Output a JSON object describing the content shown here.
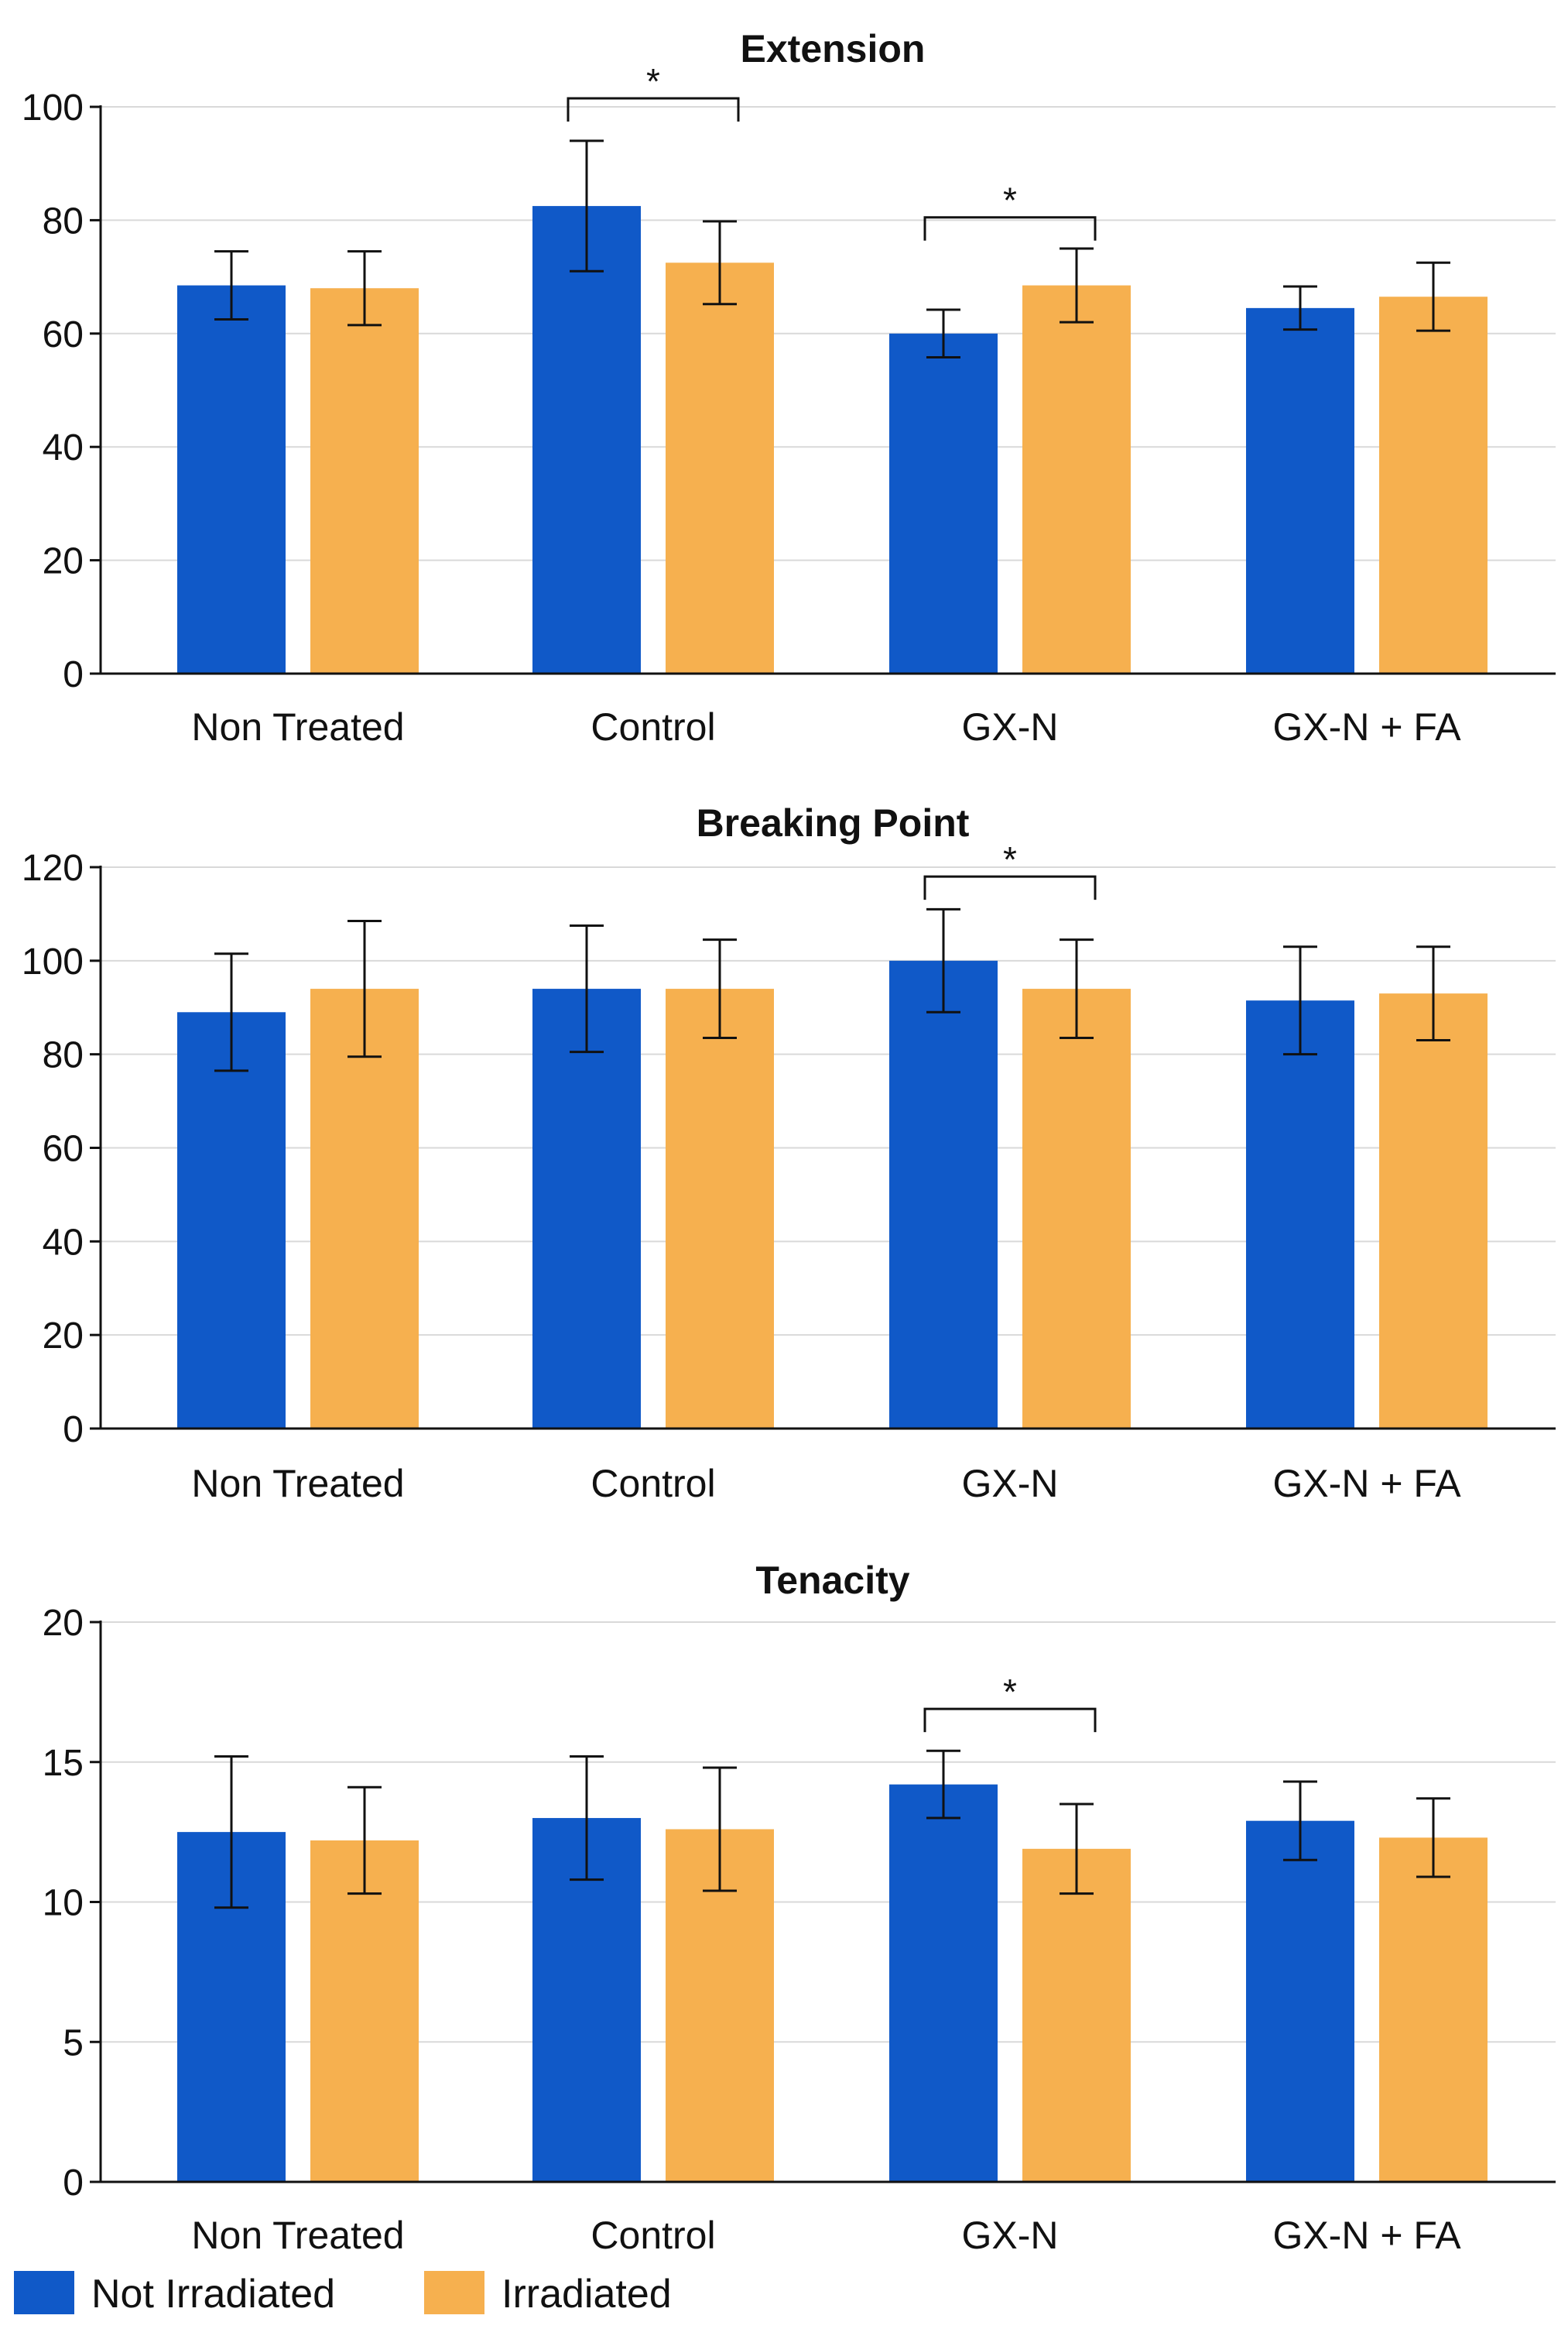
{
  "colors": {
    "not_irradiated": "#1059C8",
    "irradiated": "#F6B04F"
  },
  "legend": {
    "items": [
      {
        "label": "Not Irradiated",
        "color": "#1059C8"
      },
      {
        "label": "Irradiated",
        "color": "#F6B04F"
      }
    ]
  },
  "chart_data": [
    {
      "type": "bar",
      "title": "Extension",
      "categories": [
        "Non Treated",
        "Control",
        "GX-N",
        "GX-N + FA"
      ],
      "ylim": [
        0,
        100
      ],
      "yticks": [
        0,
        20,
        40,
        60,
        80,
        100
      ],
      "series": [
        {
          "name": "Not Irradiated",
          "values": [
            68.5,
            82.5,
            60,
            64.5
          ],
          "errors": [
            6,
            11.5,
            4.2,
            3.8
          ]
        },
        {
          "name": "Irradiated",
          "values": [
            68,
            72.5,
            68.5,
            66.5
          ],
          "errors": [
            6.5,
            7.3,
            6.5,
            6
          ]
        }
      ],
      "significance": [
        {
          "category": "Control",
          "label": "*",
          "y": 101.5
        },
        {
          "category": "GX-N",
          "label": "*",
          "y": 80.5
        }
      ],
      "grid": true
    },
    {
      "type": "bar",
      "title": "Breaking Point",
      "categories": [
        "Non Treated",
        "Control",
        "GX-N",
        "GX-N + FA"
      ],
      "ylim": [
        0,
        120
      ],
      "yticks": [
        0,
        20,
        40,
        60,
        80,
        100,
        120
      ],
      "series": [
        {
          "name": "Not Irradiated",
          "values": [
            89,
            94,
            100,
            91.5
          ],
          "errors": [
            12.5,
            13.5,
            11,
            11.5
          ]
        },
        {
          "name": "Irradiated",
          "values": [
            94,
            94,
            94,
            93
          ],
          "errors": [
            14.5,
            10.5,
            10.5,
            10
          ]
        }
      ],
      "significance": [
        {
          "category": "GX-N",
          "label": "*",
          "y": 118
        }
      ],
      "grid": true
    },
    {
      "type": "bar",
      "title": "Tenacity",
      "categories": [
        "Non Treated",
        "Control",
        "GX-N",
        "GX-N + FA"
      ],
      "ylim": [
        0,
        20
      ],
      "yticks": [
        0,
        5,
        10,
        15,
        20
      ],
      "series": [
        {
          "name": "Not Irradiated",
          "values": [
            12.5,
            13,
            14.2,
            12.9
          ],
          "errors": [
            2.7,
            2.2,
            1.2,
            1.4
          ]
        },
        {
          "name": "Irradiated",
          "values": [
            12.2,
            12.6,
            11.9,
            12.3
          ],
          "errors": [
            1.9,
            2.2,
            1.6,
            1.4
          ]
        }
      ],
      "significance": [
        {
          "category": "GX-N",
          "label": "*",
          "y": 16.9
        }
      ],
      "grid": true
    }
  ]
}
